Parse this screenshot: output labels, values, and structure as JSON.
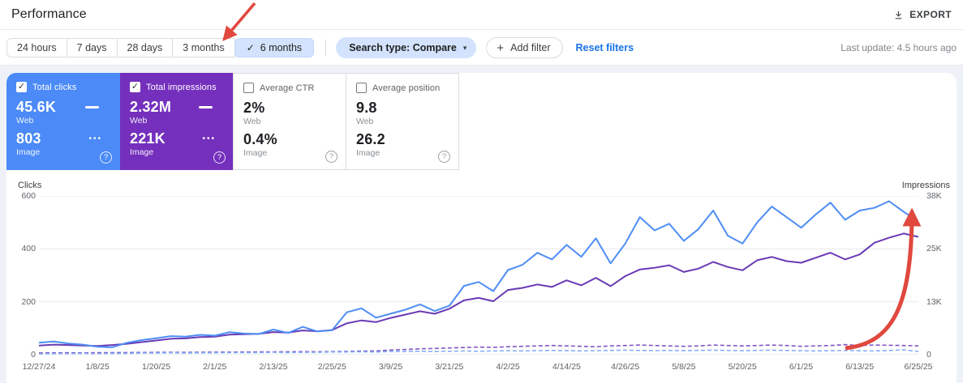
{
  "header": {
    "title": "Performance",
    "export_label": "EXPORT"
  },
  "filters": {
    "date_ranges": [
      {
        "label": "24 hours"
      },
      {
        "label": "7 days"
      },
      {
        "label": "28 days"
      },
      {
        "label": "3 months"
      },
      {
        "label": "6 months"
      }
    ],
    "selected_range": "6 months",
    "check_glyph": "✓",
    "search_type_label": "Search type: Compare",
    "caret_glyph": "▾",
    "plus_glyph": "+",
    "add_filter_label": "Add filter",
    "reset_label": "Reset filters",
    "last_update": "Last update: 4.5 hours ago"
  },
  "ui": {
    "check_glyph": "✓",
    "dots_glyph": "•••",
    "help_glyph": "?"
  },
  "cards": [
    {
      "title": "Total clicks",
      "checked": true,
      "color": "#4b8af7",
      "rows": [
        {
          "value": "45.6K",
          "label": "Web"
        },
        {
          "value": "803",
          "label": "Image"
        }
      ]
    },
    {
      "title": "Total impressions",
      "checked": true,
      "color": "#7430bd",
      "rows": [
        {
          "value": "2.32M",
          "label": "Web"
        },
        {
          "value": "221K",
          "label": "Image"
        }
      ]
    },
    {
      "title": "Average CTR",
      "checked": false,
      "color": "#ffffff",
      "rows": [
        {
          "value": "2%",
          "label": "Web"
        },
        {
          "value": "0.4%",
          "label": "Image"
        }
      ]
    },
    {
      "title": "Average position",
      "checked": false,
      "color": "#ffffff",
      "rows": [
        {
          "value": "9.8",
          "label": "Web"
        },
        {
          "value": "26.2",
          "label": "Image"
        }
      ]
    }
  ],
  "chart_data": {
    "type": "line",
    "left_axis": {
      "label": "Clicks",
      "ticks": [
        "600",
        "400",
        "200",
        "0"
      ],
      "range": [
        0,
        600
      ]
    },
    "right_axis": {
      "label": "Impressions",
      "ticks": [
        "38K",
        "25K",
        "13K",
        "0"
      ],
      "range": [
        0,
        38000
      ]
    },
    "x_tick_labels": [
      "12/27/24",
      "1/8/25",
      "1/20/25",
      "2/1/25",
      "2/13/25",
      "2/25/25",
      "3/9/25",
      "3/21/25",
      "4/2/25",
      "4/14/25",
      "4/26/25",
      "5/8/25",
      "5/20/25",
      "6/1/25",
      "6/13/25",
      "6/25/25"
    ],
    "grid": true,
    "grid_color": "#e8eaed",
    "baseline_color": "#dadce0",
    "series": [
      {
        "name": "Web clicks",
        "axis": "clicks",
        "style": "solid",
        "color": "#4e8df5",
        "width": 2,
        "values": [
          45,
          50,
          42,
          38,
          30,
          28,
          45,
          55,
          62,
          70,
          68,
          75,
          72,
          85,
          80,
          78,
          95,
          82,
          105,
          88,
          92,
          160,
          175,
          140,
          155,
          170,
          190,
          165,
          185,
          260,
          275,
          240,
          320,
          340,
          385,
          360,
          415,
          370,
          440,
          345,
          420,
          520,
          470,
          495,
          430,
          475,
          545,
          450,
          420,
          500,
          560,
          520,
          480,
          530,
          575,
          510,
          545,
          555,
          580,
          540,
          505
        ]
      },
      {
        "name": "Web impressions",
        "axis": "impressions",
        "style": "solid",
        "color": "#6a3ab5",
        "width": 2,
        "values": [
          2200,
          2400,
          2300,
          2200,
          2100,
          2300,
          2600,
          3000,
          3400,
          3800,
          3900,
          4200,
          4300,
          4800,
          4900,
          5000,
          5400,
          5300,
          5800,
          5600,
          5900,
          7500,
          8200,
          7800,
          8800,
          9600,
          10400,
          9800,
          11000,
          13000,
          13600,
          12800,
          15500,
          16000,
          16800,
          16200,
          17800,
          16600,
          18400,
          16400,
          18800,
          20400,
          20800,
          21400,
          19800,
          20600,
          22200,
          21000,
          20200,
          22600,
          23400,
          22400,
          22000,
          23200,
          24400,
          22800,
          24000,
          26800,
          28000,
          29000,
          28200
        ]
      },
      {
        "name": "Image clicks",
        "axis": "clicks",
        "style": "dashed",
        "color": "#85aef8",
        "width": 1.6,
        "values": [
          3,
          4,
          4,
          5,
          4,
          5,
          5,
          6,
          6,
          7,
          6,
          7,
          7,
          8,
          8,
          8,
          9,
          8,
          9,
          9,
          10,
          10,
          11,
          10,
          12,
          12,
          13,
          12,
          13,
          14,
          13,
          14,
          15,
          14,
          15,
          16,
          15,
          14,
          15,
          16,
          17,
          16,
          15,
          16,
          15,
          16,
          17,
          16,
          15,
          16,
          17,
          16,
          15,
          14,
          15,
          16,
          15,
          14,
          16,
          18,
          12
        ]
      },
      {
        "name": "Image impressions",
        "axis": "impressions",
        "style": "dashed",
        "color": "#7e57c2",
        "width": 1.6,
        "values": [
          400,
          420,
          450,
          430,
          460,
          480,
          500,
          520,
          540,
          560,
          550,
          580,
          600,
          620,
          640,
          650,
          680,
          700,
          720,
          700,
          730,
          780,
          850,
          900,
          1100,
          1250,
          1400,
          1500,
          1600,
          1700,
          1800,
          1750,
          1900,
          2000,
          2100,
          2200,
          2100,
          2000,
          1900,
          2100,
          2200,
          2300,
          2200,
          2100,
          2000,
          2100,
          2300,
          2200,
          2100,
          2200,
          2300,
          2200,
          2000,
          2100,
          2200,
          2400,
          2200,
          2300,
          2250,
          2200,
          2100
        ]
      }
    ],
    "annotations": [
      {
        "type": "arrow",
        "color": "#e0483e",
        "target": "6 months date-range tab"
      },
      {
        "type": "arrow",
        "color": "#e0483e",
        "target": "rising lines at right side of chart"
      }
    ]
  }
}
